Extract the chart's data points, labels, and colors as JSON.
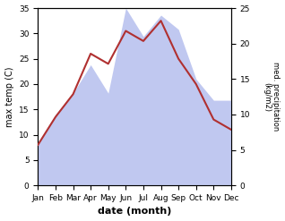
{
  "months": [
    "Jan",
    "Feb",
    "Mar",
    "Apr",
    "May",
    "Jun",
    "Jul",
    "Aug",
    "Sep",
    "Oct",
    "Nov",
    "Dec"
  ],
  "temperature": [
    8,
    13.5,
    18,
    26,
    24,
    30.5,
    28.5,
    32.5,
    25,
    20,
    13,
    11
  ],
  "precipitation": [
    6,
    10,
    13,
    17,
    13,
    25,
    21,
    24,
    22,
    15,
    12,
    12
  ],
  "temp_color": "#b03030",
  "precip_color": "#c0c8f0",
  "xlabel": "date (month)",
  "ylabel_left": "max temp (C)",
  "ylabel_right": "med. precipitation\n(kg/m2)",
  "ylim_left": [
    0,
    35
  ],
  "ylim_right": [
    0,
    25
  ],
  "yticks_left": [
    0,
    5,
    10,
    15,
    20,
    25,
    30,
    35
  ],
  "yticks_right": [
    0,
    5,
    10,
    15,
    20,
    25
  ],
  "precip_scale": 1.4,
  "bg_color": "#ffffff"
}
